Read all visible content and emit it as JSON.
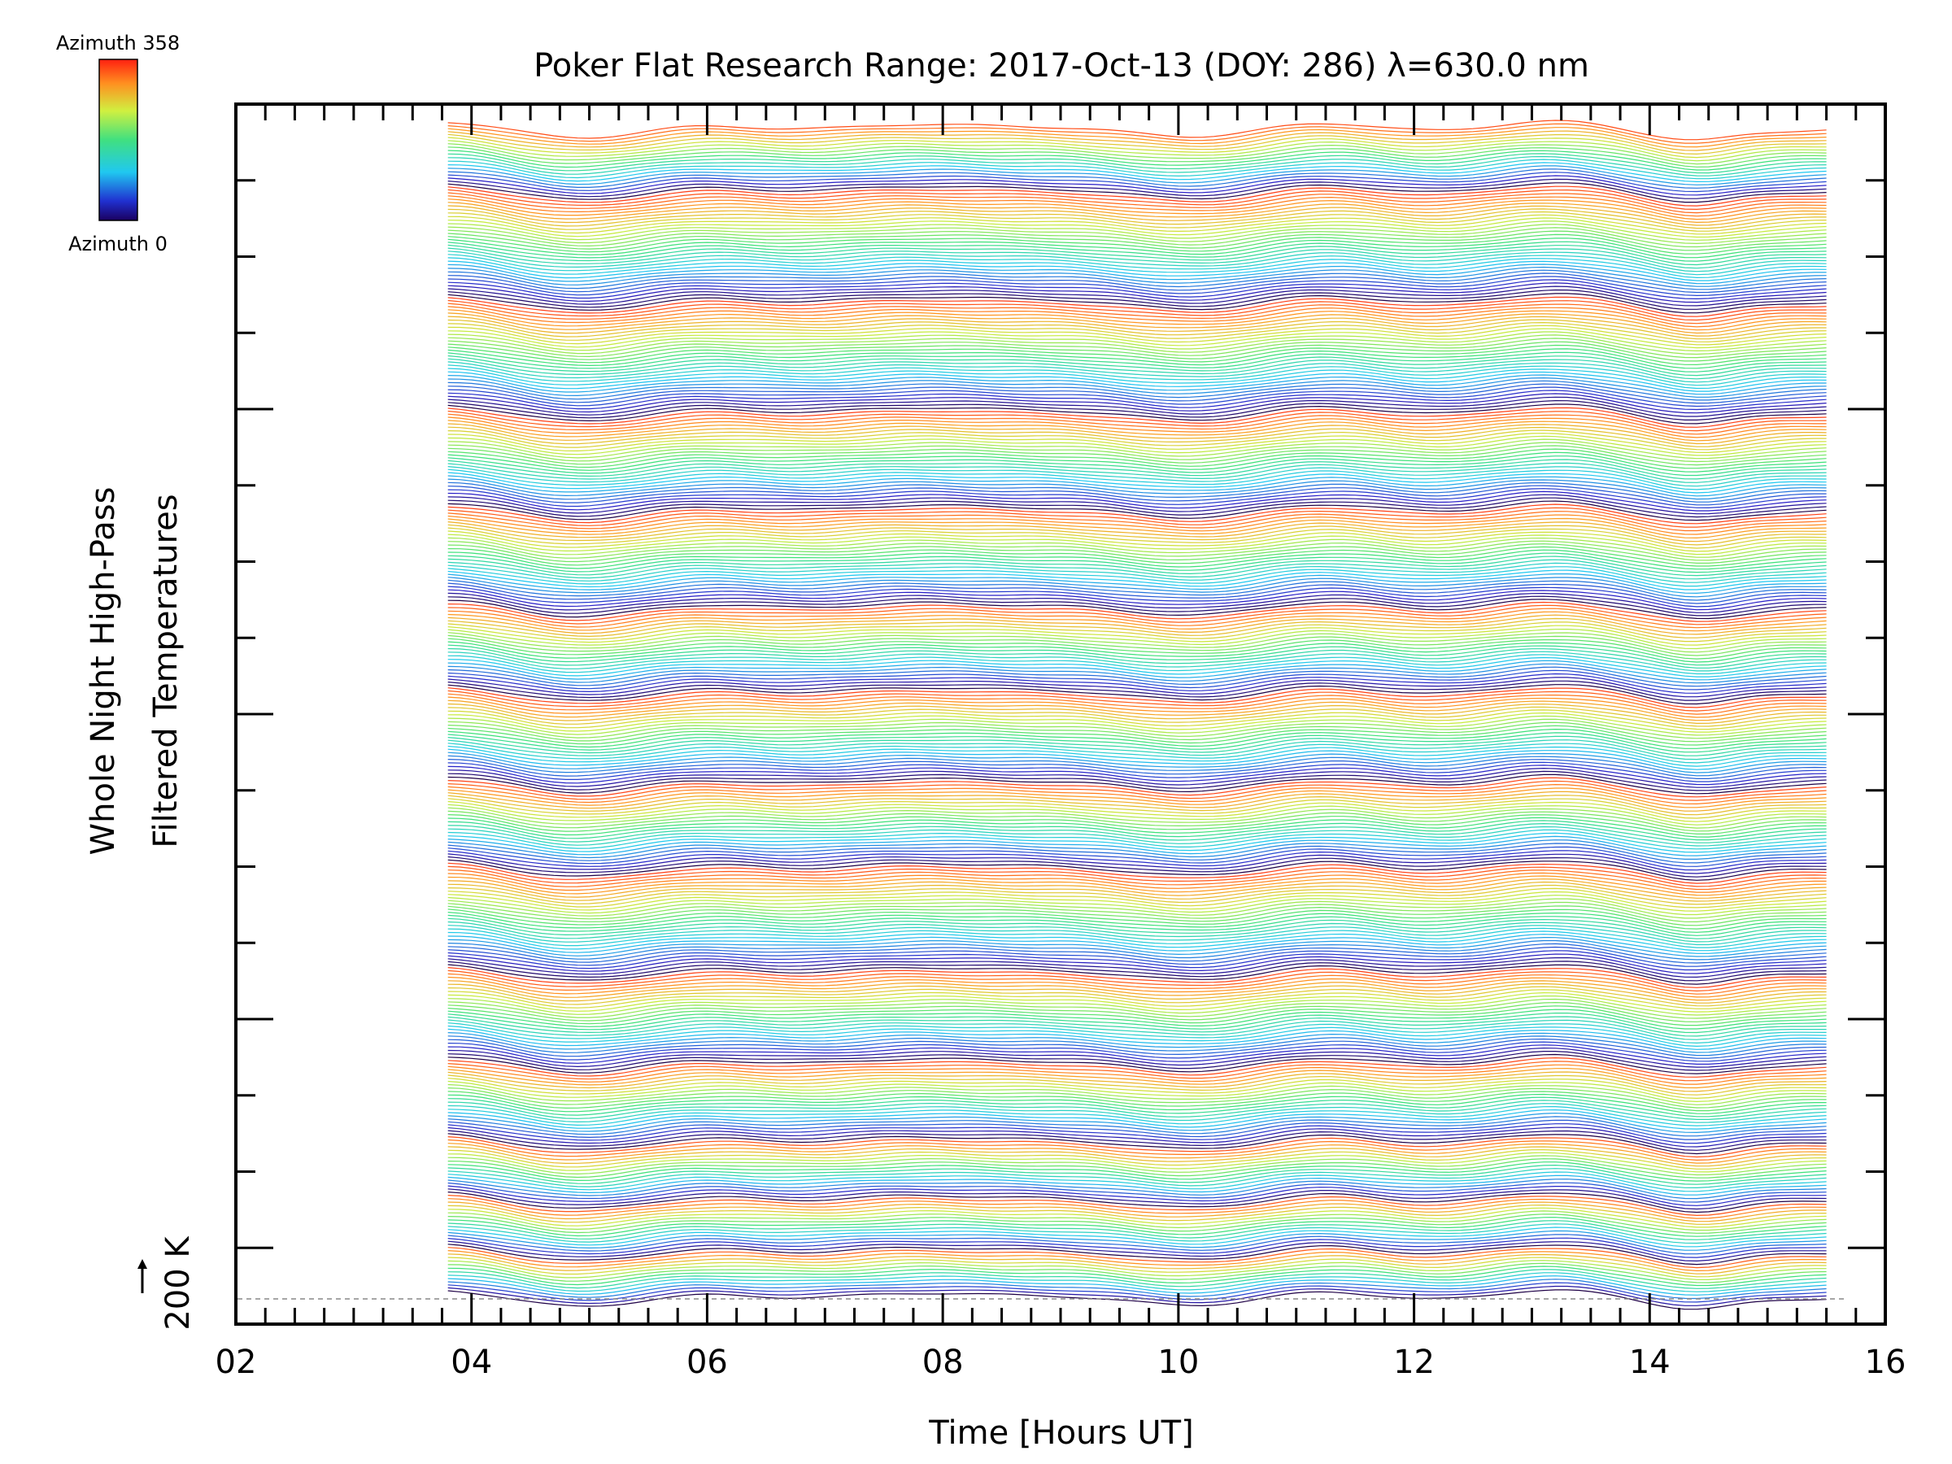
{
  "chart_data": {
    "type": "line",
    "title": "Poker Flat Research Range: 2017-Oct-13 (DOY: 286) λ=630.0 nm",
    "xlabel": "Time [Hours UT]",
    "ylabel_line1": "Whole Night High-Pass",
    "ylabel_line2": "Filtered Temperatures",
    "xlim": [
      2,
      16
    ],
    "x_tick_labels": [
      "02",
      "04",
      "06",
      "08",
      "10",
      "12",
      "14",
      "16"
    ],
    "x_ticks": [
      2,
      4,
      6,
      8,
      10,
      12,
      14,
      16
    ],
    "scale_bar_label": "200 K",
    "grid": false,
    "data_time_range": [
      3.8,
      15.5
    ],
    "num_traces": 360,
    "colorbar": {
      "top_label": "Azimuth 358",
      "bottom_label": "Azimuth 0",
      "azimuth_range": [
        0,
        358
      ],
      "colormap": "rainbow"
    },
    "colors": {
      "axis": "#000000",
      "background": "#ffffff"
    }
  }
}
